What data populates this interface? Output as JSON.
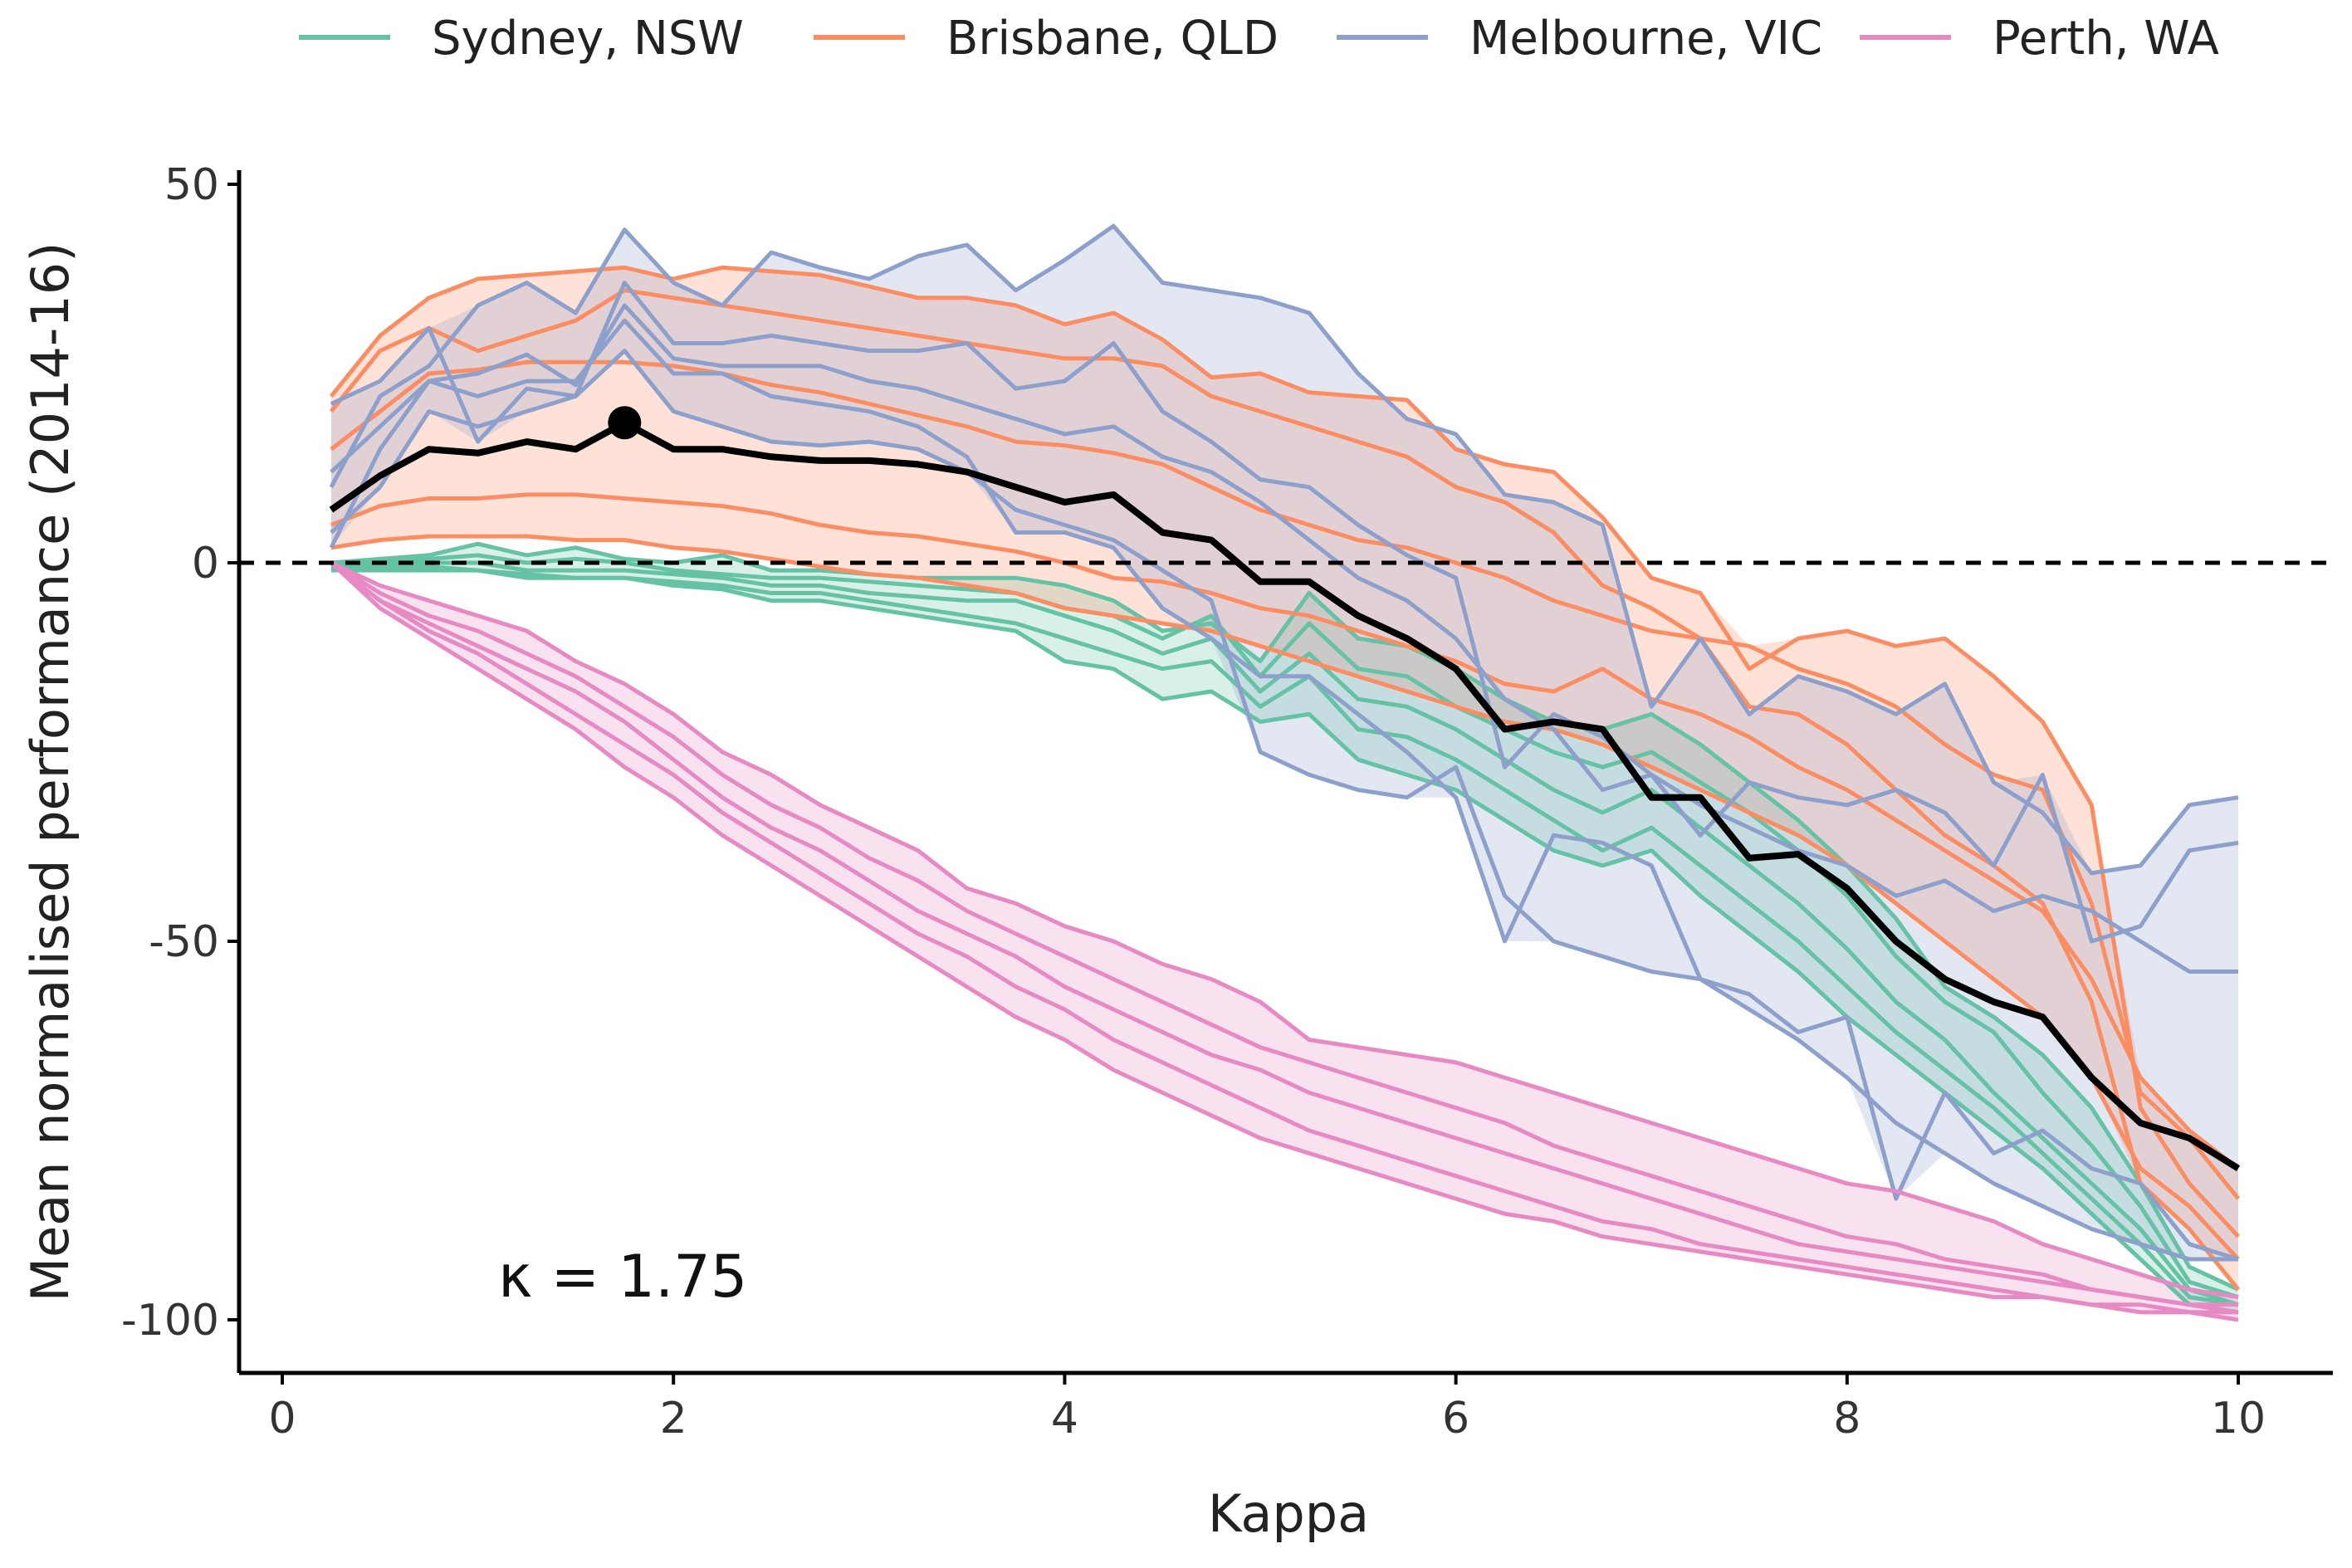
{
  "chart_data": {
    "type": "line",
    "title": "",
    "xlabel": "Kappa",
    "ylabel": "Mean normalised performance (2014-16)",
    "xlim": [
      -0.2,
      10.5
    ],
    "ylim": [
      -107,
      52
    ],
    "xticks": [
      0,
      2,
      4,
      6,
      8,
      10
    ],
    "yticks": [
      -100,
      -50,
      0,
      50
    ],
    "xtick_labels": [
      "0",
      "2",
      "4",
      "6",
      "8",
      "10"
    ],
    "ytick_labels": [
      "-100",
      "-50",
      "0",
      "50"
    ],
    "reference_line": {
      "y": 0,
      "style": "dashed"
    },
    "annotation": "κ = 1.75",
    "highlight_point": {
      "x": 1.75,
      "y": 18.5
    },
    "legend": {
      "position": "top",
      "entries": [
        "Sydney, NSW",
        "Brisbane, QLD",
        "Melbourne, VIC",
        "Perth, WA"
      ]
    },
    "x": [
      0.25,
      0.5,
      0.75,
      1,
      1.25,
      1.5,
      1.75,
      2,
      2.25,
      2.5,
      2.75,
      3,
      3.25,
      3.5,
      3.75,
      4,
      4.25,
      4.5,
      4.75,
      5,
      5.25,
      5.5,
      5.75,
      6,
      6.25,
      6.5,
      6.75,
      7,
      7.25,
      7.5,
      7.75,
      8,
      8.25,
      8.5,
      8.75,
      9,
      9.25,
      9.5,
      9.75,
      10
    ],
    "series": [
      {
        "name": "Sydney, NSW",
        "color": "#66c2a5",
        "lines": [
          [
            0,
            0.5,
            1,
            2.5,
            1,
            2,
            0.5,
            0,
            1,
            -1,
            -1,
            -1.5,
            -2,
            -2,
            -2,
            -3,
            -5,
            -9,
            -8,
            -13,
            -4,
            -10,
            -11,
            -14,
            -18,
            -21,
            -22,
            -20,
            -24,
            -29,
            -34,
            -40,
            -47,
            -56,
            -60,
            -65,
            -72,
            -82,
            -93,
            -96
          ],
          [
            0,
            0,
            0.5,
            1,
            0,
            0.5,
            0,
            -1,
            -1.5,
            -2,
            -2,
            -2.5,
            -3,
            -3.5,
            -4,
            -6,
            -7,
            -10,
            -7,
            -15,
            -8,
            -14,
            -15,
            -19,
            -22,
            -25,
            -27,
            -25,
            -29,
            -33,
            -38,
            -44,
            -52,
            -58,
            -62,
            -70,
            -77,
            -85,
            -95,
            -97
          ],
          [
            0,
            0,
            0,
            0,
            -1,
            -1,
            -1,
            -1.5,
            -2,
            -3,
            -3,
            -4,
            -4.5,
            -5,
            -5,
            -7,
            -9,
            -12,
            -10,
            -17,
            -12,
            -18,
            -19,
            -22,
            -26,
            -30,
            -33,
            -30,
            -35,
            -40,
            -45,
            -51,
            -58,
            -63,
            -70,
            -76,
            -82,
            -88,
            -96,
            -98
          ],
          [
            -0.5,
            -0.5,
            -0.5,
            -1,
            -1.5,
            -2,
            -2,
            -2.5,
            -3,
            -4,
            -4,
            -5,
            -6,
            -7,
            -8,
            -10,
            -12,
            -14,
            -13,
            -19,
            -15,
            -22,
            -23,
            -26,
            -30,
            -34,
            -38,
            -35,
            -40,
            -45,
            -50,
            -56,
            -62,
            -67,
            -72,
            -78,
            -84,
            -90,
            -97,
            -98
          ],
          [
            -1,
            -1,
            -1,
            -1,
            -2,
            -2,
            -2,
            -3,
            -3.5,
            -5,
            -5,
            -6,
            -7,
            -8,
            -9,
            -13,
            -14,
            -18,
            -17,
            -21,
            -20,
            -26,
            -28,
            -30,
            -34,
            -38,
            -40,
            -38,
            -44,
            -49,
            -54,
            -60,
            -65,
            -70,
            -75,
            -80,
            -86,
            -92,
            -98,
            -99
          ]
        ]
      },
      {
        "name": "Brisbane, QLD",
        "color": "#fc8d62",
        "lines": [
          [
            22,
            30,
            35,
            37.5,
            38,
            38.5,
            39,
            37.5,
            39,
            38.5,
            38,
            36.5,
            35,
            35,
            34,
            31.5,
            33,
            29.5,
            24.5,
            25,
            22.5,
            22,
            21.5,
            15,
            13,
            12,
            6,
            -2,
            -4,
            -14,
            -10,
            -9,
            -11,
            -10,
            -15,
            -21,
            -32,
            -72,
            -82,
            -89
          ],
          [
            15,
            20,
            25,
            25.5,
            26.5,
            26.5,
            26.5,
            26,
            25,
            23.5,
            22.5,
            21,
            19.5,
            18,
            16,
            15.5,
            14.5,
            13,
            10,
            7,
            5,
            3,
            2,
            0,
            -2,
            -5,
            -7,
            -9,
            -10,
            -11,
            -14,
            -16,
            -19,
            -24,
            -28,
            -30,
            -45,
            -70,
            -76,
            -84
          ],
          [
            5,
            7.5,
            8.5,
            8.5,
            9,
            9,
            8.5,
            8,
            7.5,
            6.5,
            5,
            4,
            3.5,
            2.5,
            1.5,
            0,
            -2,
            -2.5,
            -4,
            -6,
            -7,
            -9,
            -11,
            -13,
            -16,
            -17,
            -14,
            -18,
            -20,
            -23,
            -27,
            -30,
            -34,
            -38,
            -42,
            -46,
            -55,
            -68,
            -75,
            -80
          ],
          [
            2,
            3,
            3.5,
            3.5,
            3.5,
            3,
            3,
            2,
            1.5,
            0.5,
            -0.5,
            -1.5,
            -2,
            -3,
            -4,
            -6,
            -7,
            -8,
            -9,
            -11,
            -13,
            -15,
            -17,
            -19,
            -21,
            -22,
            -24,
            -27,
            -30,
            -33,
            -36,
            -40,
            -45,
            -50,
            -55,
            -60,
            -68,
            -80,
            -85,
            -92
          ],
          [
            20,
            28,
            31,
            28,
            30,
            32,
            36,
            35,
            34,
            33,
            32,
            31,
            30,
            29,
            28,
            27,
            27,
            26,
            22,
            20,
            18,
            16,
            14,
            10,
            8,
            4,
            -3,
            -6,
            -10,
            -19,
            -20,
            -24,
            -30,
            -36,
            -40,
            -45,
            -58,
            -82,
            -88,
            -96
          ]
        ]
      },
      {
        "name": "Melbourne, VIC",
        "color": "#8da0cb",
        "lines": [
          [
            10,
            22,
            26,
            34,
            37,
            33,
            44,
            37,
            34,
            41,
            39,
            37.5,
            40.5,
            42,
            36,
            40,
            44.5,
            37,
            36,
            35,
            33,
            25,
            19,
            17,
            9,
            8,
            5,
            -19,
            -10,
            -20,
            -15,
            -17,
            -20,
            -16,
            -29,
            -33,
            -41,
            -40,
            -32,
            -31
          ],
          [
            21,
            24,
            31,
            16,
            23,
            22,
            37,
            29,
            29,
            30,
            29,
            28,
            28,
            29,
            23,
            24,
            29,
            20,
            16,
            11,
            10,
            5,
            1,
            -2,
            -27,
            -20,
            -23,
            -28,
            -36,
            -29,
            -31,
            -32,
            -30,
            -33,
            -40,
            -28,
            -50,
            -48,
            -38,
            -37
          ],
          [
            12,
            18,
            24,
            25,
            27.5,
            23.5,
            34,
            27,
            26,
            26,
            26,
            24,
            23,
            21,
            19,
            17,
            18,
            14,
            12,
            8,
            3,
            -2,
            -5,
            -10,
            -18,
            -22,
            -30,
            -28,
            -32,
            -35,
            -38,
            -40,
            -44,
            -42,
            -46,
            -44,
            -46,
            -50,
            -54,
            -54
          ],
          [
            2,
            15,
            24,
            22,
            24,
            24,
            32,
            25,
            25,
            22,
            21,
            20,
            18,
            14,
            4,
            4,
            2,
            -6,
            -10,
            -15,
            -15,
            -20,
            -25,
            -31,
            -50,
            -36,
            -37,
            -40,
            -55,
            -57,
            -62,
            -60,
            -84,
            -70,
            -78,
            -75,
            -80,
            -82,
            -90,
            -92
          ],
          [
            4,
            10,
            20,
            18,
            20,
            22,
            28,
            20,
            18,
            16,
            15.5,
            16,
            15,
            12,
            7,
            5,
            3,
            -1,
            -5,
            -25,
            -28,
            -30,
            -31,
            -27,
            -44,
            -50,
            -52,
            -54,
            -55,
            -59,
            -63,
            -68,
            -74,
            -78,
            -82,
            -85,
            -88,
            -90,
            -92,
            -92
          ]
        ]
      },
      {
        "name": "Perth, WA",
        "color": "#e78ac3",
        "lines": [
          [
            0,
            -3,
            -5,
            -7,
            -9,
            -13,
            -16,
            -20,
            -25,
            -28,
            -32,
            -35,
            -38,
            -43,
            -45,
            -48,
            -50,
            -53,
            -55,
            -58,
            -63,
            -64,
            -65,
            -66,
            -68,
            -70,
            -72,
            -74,
            -76,
            -78,
            -80,
            -82,
            -83,
            -85,
            -87,
            -90,
            -92,
            -94,
            -96,
            -97
          ],
          [
            0,
            -4,
            -7,
            -9,
            -12,
            -15,
            -19,
            -23,
            -28,
            -32,
            -35,
            -39,
            -42,
            -46,
            -49,
            -52,
            -55,
            -58,
            -61,
            -64,
            -66,
            -68,
            -70,
            -72,
            -74,
            -77,
            -79,
            -81,
            -83,
            -85,
            -87,
            -89,
            -90,
            -92,
            -93,
            -94,
            -96,
            -97,
            -98,
            -98
          ],
          [
            0,
            -5,
            -8,
            -11,
            -14,
            -17,
            -21,
            -26,
            -31,
            -35,
            -38,
            -42,
            -46,
            -49,
            -52,
            -56,
            -59,
            -62,
            -65,
            -67,
            -70,
            -72,
            -74,
            -76,
            -78,
            -80,
            -82,
            -84,
            -86,
            -88,
            -90,
            -91,
            -92,
            -93,
            -94,
            -95,
            -96,
            -97,
            -98,
            -99
          ],
          [
            0,
            -5,
            -9,
            -12,
            -16,
            -20,
            -24,
            -28,
            -33,
            -37,
            -41,
            -45,
            -49,
            -52,
            -56,
            -59,
            -63,
            -66,
            -69,
            -72,
            -75,
            -77,
            -79,
            -81,
            -83,
            -85,
            -87,
            -88,
            -90,
            -91,
            -92,
            -93,
            -94,
            -95,
            -96,
            -97,
            -98,
            -98,
            -99,
            -99
          ],
          [
            0,
            -6,
            -10,
            -14,
            -18,
            -22,
            -27,
            -31,
            -36,
            -40,
            -44,
            -48,
            -52,
            -56,
            -60,
            -63,
            -67,
            -70,
            -73,
            -76,
            -78,
            -80,
            -82,
            -84,
            -86,
            -87,
            -89,
            -90,
            -91,
            -92,
            -93,
            -94,
            -95,
            -96,
            -97,
            -97,
            -98,
            -99,
            -99,
            -100
          ]
        ]
      }
    ],
    "mean_line": {
      "color": "#000000",
      "values": [
        7,
        11.5,
        15,
        14.5,
        16,
        15,
        18.5,
        15,
        15,
        14,
        13.5,
        13.5,
        13,
        12,
        10,
        8,
        9,
        4,
        3,
        -2.5,
        -2.5,
        -7,
        -10,
        -14,
        -22,
        -21,
        -22,
        -31,
        -31,
        -39,
        -38.5,
        -43,
        -50,
        -55,
        -58,
        -60,
        -68,
        -74,
        -76,
        -80
      ]
    }
  }
}
